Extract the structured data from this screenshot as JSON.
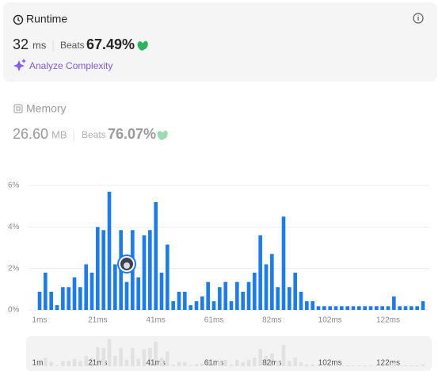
{
  "runtime": {
    "title": "Runtime",
    "value": "32",
    "unit": "ms",
    "beats_label": "Beats",
    "beats_value": "67.49%",
    "analyze": "Analyze Complexity"
  },
  "memory": {
    "title": "Memory",
    "value": "26.60",
    "unit": "MB",
    "beats_label": "Beats",
    "beats_value": "76.07%"
  },
  "chart_data": {
    "type": "bar",
    "color": "#1b7bf2",
    "grid": true,
    "categories": [
      "1ms",
      null,
      null,
      null,
      null,
      null,
      null,
      null,
      null,
      null,
      "21ms",
      null,
      null,
      null,
      null,
      null,
      null,
      null,
      null,
      null,
      "41ms",
      null,
      null,
      null,
      null,
      null,
      null,
      null,
      null,
      null,
      "61ms",
      null,
      null,
      null,
      null,
      null,
      null,
      null,
      null,
      null,
      "82ms",
      null,
      null,
      null,
      null,
      null,
      null,
      null,
      null,
      null,
      "102ms",
      null,
      null,
      null,
      null,
      null,
      null,
      null,
      null,
      null,
      "122ms",
      null,
      null,
      null,
      null,
      null,
      null
    ],
    "values": [
      0.88,
      1.8,
      0.88,
      0.23,
      1.1,
      1.1,
      1.57,
      1.1,
      2.2,
      1.8,
      4.0,
      3.85,
      5.7,
      2.2,
      3.85,
      1.35,
      3.85,
      1.57,
      3.6,
      3.85,
      5.2,
      1.8,
      3.15,
      0.42,
      0.88,
      0.88,
      0.23,
      0.42,
      0.65,
      1.35,
      0.42,
      1.1,
      1.35,
      0.42,
      1.35,
      0.88,
      1.35,
      1.8,
      3.6,
      2.2,
      2.7,
      1.1,
      4.5,
      1.1,
      1.8,
      0.88,
      0.42,
      0.42,
      0.18,
      0.18,
      0.18,
      0.18,
      0.18,
      0.18,
      0.18,
      0.18,
      0.18,
      0.18,
      0.18,
      0.18,
      0.18,
      0.65,
      0.18,
      0.18,
      0.18,
      0.18,
      0.42
    ],
    "ylim": [
      0,
      6
    ],
    "yticks": [
      {
        "value": 0,
        "label": "0%"
      },
      {
        "value": 2,
        "label": "2%"
      },
      {
        "value": 4,
        "label": "4%"
      },
      {
        "value": 6,
        "label": "6%"
      }
    ]
  }
}
